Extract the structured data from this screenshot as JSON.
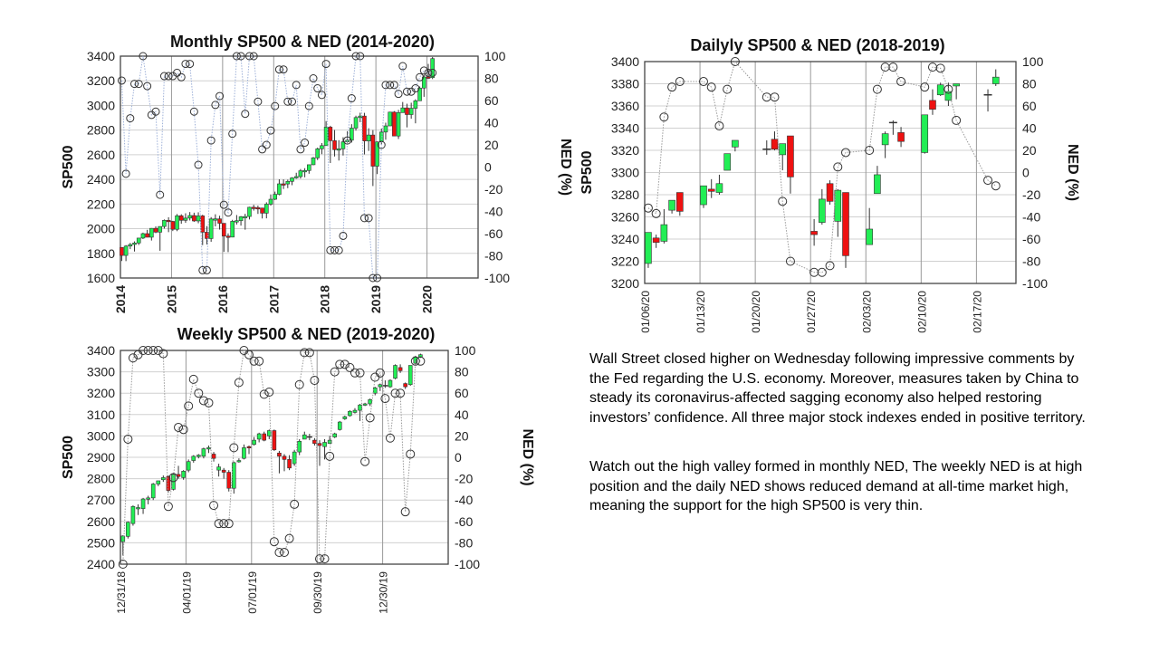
{
  "colors": {
    "up": "#22ee55",
    "down": "#ee1111",
    "outline": "#333333",
    "grid": "#d0d0d0",
    "ned_line_monthly": "#9db0d8",
    "ned_line": "#999999"
  },
  "commentary": {
    "paragraph1": [
      "Wall Street closed higher on Wednesday following impressive comments by",
      "the Fed regarding the U.S. economy. Moreover, measures taken by China to",
      "steady its coronavirus-affected sagging economy also helped restoring",
      "investors’ confidence. All three major stock indexes ended in positive territory."
    ],
    "paragraph2": [
      "Watch out the high valley formed in monthly NED, The weekly NED is at high",
      "position and the daily NED shows reduced demand at all-time market high,",
      "meaning the support for the high SP500 is very thin."
    ]
  },
  "chart_data": [
    {
      "id": "monthly",
      "type": "candlestick",
      "title": "Monthly SP500 & NED (2014-2020)",
      "ylabel": "SP500",
      "y2label": "NED (%)",
      "ylim": [
        1600,
        3400
      ],
      "ystep": 200,
      "y2lim": [
        -100,
        100
      ],
      "y2step": 20,
      "xlim": [
        0,
        84
      ],
      "xticks": [
        {
          "label": "2014",
          "x": 0
        },
        {
          "label": "2015",
          "x": 12
        },
        {
          "label": "2016",
          "x": 24
        },
        {
          "label": "2017",
          "x": 36
        },
        {
          "label": "2018",
          "x": 48
        },
        {
          "label": "2019",
          "x": 60
        },
        {
          "label": "2020",
          "x": 72
        }
      ],
      "candles_ohlc": [
        [
          1848,
          1850,
          1738,
          1783
        ],
        [
          1783,
          1867,
          1737,
          1859
        ],
        [
          1859,
          1884,
          1834,
          1872
        ],
        [
          1872,
          1897,
          1815,
          1884
        ],
        [
          1884,
          1924,
          1868,
          1924
        ],
        [
          1924,
          1968,
          1916,
          1960
        ],
        [
          1960,
          1991,
          1930,
          1931
        ],
        [
          1931,
          2005,
          1904,
          2003
        ],
        [
          2003,
          2019,
          1964,
          1972
        ],
        [
          1972,
          2019,
          1821,
          2018
        ],
        [
          2018,
          2075,
          2001,
          2068
        ],
        [
          2068,
          2093,
          1972,
          2059
        ],
        [
          2059,
          2064,
          1981,
          1995
        ],
        [
          1995,
          2119,
          1980,
          2105
        ],
        [
          2105,
          2117,
          2040,
          2068
        ],
        [
          2068,
          2125,
          2048,
          2086
        ],
        [
          2086,
          2135,
          2067,
          2107
        ],
        [
          2107,
          2130,
          2056,
          2063
        ],
        [
          2063,
          2133,
          2044,
          2104
        ],
        [
          2104,
          2113,
          1867,
          1972
        ],
        [
          1972,
          2021,
          1872,
          1920
        ],
        [
          1920,
          2094,
          1894,
          2079
        ],
        [
          2079,
          2117,
          2019,
          2080
        ],
        [
          2080,
          2105,
          1993,
          2044
        ],
        [
          2044,
          2044,
          1812,
          1940
        ],
        [
          1940,
          1962,
          1810,
          1932
        ],
        [
          1932,
          2072,
          1930,
          2060
        ],
        [
          2060,
          2111,
          2034,
          2065
        ],
        [
          2065,
          2103,
          2025,
          2097
        ],
        [
          2097,
          2121,
          1992,
          2099
        ],
        [
          2099,
          2178,
          2075,
          2174
        ],
        [
          2174,
          2194,
          2147,
          2171
        ],
        [
          2171,
          2188,
          2120,
          2168
        ],
        [
          2168,
          2169,
          2083,
          2126
        ],
        [
          2126,
          2214,
          2084,
          2199
        ],
        [
          2199,
          2278,
          2187,
          2239
        ],
        [
          2239,
          2301,
          2233,
          2279
        ],
        [
          2279,
          2401,
          2271,
          2364
        ],
        [
          2364,
          2400,
          2322,
          2363
        ],
        [
          2363,
          2398,
          2329,
          2384
        ],
        [
          2384,
          2418,
          2353,
          2412
        ],
        [
          2412,
          2454,
          2405,
          2423
        ],
        [
          2423,
          2484,
          2407,
          2470
        ],
        [
          2470,
          2491,
          2417,
          2472
        ],
        [
          2472,
          2520,
          2446,
          2519
        ],
        [
          2519,
          2582,
          2515,
          2575
        ],
        [
          2575,
          2658,
          2557,
          2648
        ],
        [
          2648,
          2695,
          2605,
          2674
        ],
        [
          2674,
          2873,
          2673,
          2824
        ],
        [
          2824,
          2835,
          2533,
          2714
        ],
        [
          2714,
          2801,
          2586,
          2641
        ],
        [
          2641,
          2718,
          2553,
          2648
        ],
        [
          2648,
          2742,
          2594,
          2705
        ],
        [
          2705,
          2791,
          2698,
          2718
        ],
        [
          2718,
          2848,
          2699,
          2816
        ],
        [
          2816,
          2917,
          2796,
          2902
        ],
        [
          2902,
          2941,
          2864,
          2914
        ],
        [
          2914,
          2940,
          2603,
          2712
        ],
        [
          2712,
          2815,
          2631,
          2760
        ],
        [
          2760,
          2800,
          2346,
          2507
        ],
        [
          2507,
          2708,
          2443,
          2704
        ],
        [
          2704,
          2813,
          2681,
          2784
        ],
        [
          2784,
          2860,
          2722,
          2834
        ],
        [
          2834,
          2949,
          2834,
          2946
        ],
        [
          2946,
          2954,
          2750,
          2752
        ],
        [
          2752,
          2964,
          2728,
          2942
        ],
        [
          2942,
          3028,
          2942,
          2980
        ],
        [
          2980,
          3014,
          2822,
          2926
        ],
        [
          2926,
          3022,
          2892,
          2977
        ],
        [
          2977,
          3050,
          2855,
          3038
        ],
        [
          3038,
          3154,
          3038,
          3141
        ],
        [
          3141,
          3247,
          3070,
          3231
        ],
        [
          3231,
          3337,
          3214,
          3226
        ],
        [
          3226,
          3393,
          3214,
          3380
        ]
      ],
      "ned": [
        78,
        -6,
        44,
        75,
        75,
        100,
        73,
        47,
        50,
        -25,
        82,
        82,
        82,
        85,
        81,
        93,
        93,
        50,
        2,
        -93,
        -93,
        24,
        56,
        64,
        -34,
        -41,
        30,
        100,
        100,
        48,
        100,
        100,
        59,
        16,
        20,
        33,
        55,
        88,
        88,
        59,
        59,
        74,
        16,
        22,
        55,
        80,
        71,
        65,
        93,
        -75,
        -75,
        -75,
        -62,
        24,
        62,
        100,
        100,
        -46,
        -46,
        -100,
        -100,
        20,
        74,
        74,
        74,
        66,
        91,
        68,
        68,
        71,
        81,
        87,
        85,
        85
      ]
    },
    {
      "id": "daily",
      "type": "candlestick",
      "title": "Dailyly SP500 & NED (2018-2019)",
      "ylabel": "SP500",
      "y2label": "NED (%)",
      "ylim": [
        3200,
        3400
      ],
      "ystep": 20,
      "y2lim": [
        -100,
        100
      ],
      "y2step": 20,
      "xlim": [
        0,
        47
      ],
      "xticks": [
        {
          "label": "01/06/20",
          "x": 0
        },
        {
          "label": "01/13/20",
          "x": 7
        },
        {
          "label": "01/20/20",
          "x": 14
        },
        {
          "label": "01/27/20",
          "x": 21
        },
        {
          "label": "02/03/20",
          "x": 28
        },
        {
          "label": "02/10/20",
          "x": 35
        },
        {
          "label": "02/17/20",
          "x": 42
        }
      ],
      "x": [
        0,
        1,
        2,
        3,
        4,
        7,
        8,
        9,
        10,
        11,
        15,
        16,
        17,
        18,
        21,
        22,
        23,
        24,
        25,
        28,
        29,
        30,
        31,
        32,
        35,
        36,
        37,
        38,
        39,
        43,
        44
      ],
      "candles_ohlc": [
        [
          3218,
          3246,
          3214,
          3246
        ],
        [
          3241,
          3244,
          3232,
          3237
        ],
        [
          3238,
          3267,
          3236,
          3253
        ],
        [
          3266,
          3275,
          3263,
          3275
        ],
        [
          3282,
          3282,
          3261,
          3265
        ],
        [
          3271,
          3288,
          3268,
          3288
        ],
        [
          3285,
          3294,
          3277,
          3283
        ],
        [
          3282,
          3298,
          3280,
          3290
        ],
        [
          3302,
          3317,
          3302,
          3317
        ],
        [
          3323,
          3329,
          3319,
          3329
        ],
        [
          3321,
          3329,
          3316,
          3321
        ],
        [
          3330,
          3337,
          3320,
          3321
        ],
        [
          3316,
          3326,
          3302,
          3326
        ],
        [
          3333,
          3333,
          3281,
          3296
        ],
        [
          3247,
          3258,
          3234,
          3244
        ],
        [
          3255,
          3285,
          3253,
          3276
        ],
        [
          3290,
          3293,
          3271,
          3274
        ],
        [
          3256,
          3285,
          3242,
          3284
        ],
        [
          3282,
          3282,
          3214,
          3225
        ],
        [
          3235,
          3268,
          3235,
          3249
        ],
        [
          3281,
          3306,
          3281,
          3298
        ],
        [
          3325,
          3337,
          3313,
          3335
        ],
        [
          3345,
          3347,
          3334,
          3345
        ],
        [
          3336,
          3341,
          3323,
          3328
        ],
        [
          3318,
          3352,
          3317,
          3352
        ],
        [
          3365,
          3375,
          3352,
          3357
        ],
        [
          3370,
          3381,
          3369,
          3379
        ],
        [
          3365,
          3381,
          3360,
          3373
        ],
        [
          3378,
          3380,
          3366,
          3380
        ],
        [
          3370,
          3375,
          3355,
          3370
        ],
        [
          3380,
          3393,
          3378,
          3386
        ]
      ],
      "ned": [
        -32,
        -37,
        50,
        77,
        82,
        82,
        77,
        42,
        75,
        100,
        68,
        68,
        -26,
        -80,
        -90,
        -90,
        -84,
        5,
        18,
        20,
        75,
        95,
        95,
        82,
        77,
        95,
        94,
        75,
        47,
        -7,
        -12
      ]
    },
    {
      "id": "weekly",
      "type": "candlestick",
      "title": "Weekly SP500 & NED (2019-2020)",
      "ylabel": "SP500",
      "y2label": "NED (%)",
      "ylim": [
        2400,
        3400
      ],
      "ystep": 100,
      "y2lim": [
        -100,
        100
      ],
      "y2step": 20,
      "xlim": [
        0,
        65
      ],
      "xticks": [
        {
          "label": "12/31/18",
          "x": 0
        },
        {
          "label": "04/01/19",
          "x": 13
        },
        {
          "label": "07/01/19",
          "x": 26
        },
        {
          "label": "09/30/19",
          "x": 39
        },
        {
          "label": "12/30/19",
          "x": 52
        }
      ],
      "candles_ohlc": [
        [
          2505,
          2535,
          2440,
          2532
        ],
        [
          2530,
          2600,
          2520,
          2596
        ],
        [
          2590,
          2675,
          2580,
          2670
        ],
        [
          2660,
          2680,
          2630,
          2665
        ],
        [
          2660,
          2710,
          2635,
          2705
        ],
        [
          2705,
          2720,
          2680,
          2710
        ],
        [
          2710,
          2780,
          2700,
          2775
        ],
        [
          2775,
          2790,
          2765,
          2790
        ],
        [
          2795,
          2815,
          2785,
          2805
        ],
        [
          2810,
          2815,
          2735,
          2745
        ],
        [
          2750,
          2825,
          2745,
          2820
        ],
        [
          2820,
          2860,
          2800,
          2810
        ],
        [
          2805,
          2840,
          2795,
          2835
        ],
        [
          2840,
          2890,
          2830,
          2880
        ],
        [
          2885,
          2910,
          2875,
          2905
        ],
        [
          2905,
          2915,
          2895,
          2910
        ],
        [
          2905,
          2945,
          2895,
          2940
        ],
        [
          2940,
          2955,
          2920,
          2945
        ],
        [
          2915,
          2925,
          2880,
          2895
        ],
        [
          2840,
          2870,
          2810,
          2855
        ],
        [
          2840,
          2850,
          2800,
          2830
        ],
        [
          2830,
          2840,
          2740,
          2755
        ],
        [
          2755,
          2880,
          2730,
          2875
        ],
        [
          2880,
          2895,
          2875,
          2885
        ],
        [
          2895,
          2960,
          2890,
          2945
        ],
        [
          2950,
          2955,
          2915,
          2945
        ],
        [
          2960,
          2995,
          2955,
          2980
        ],
        [
          2985,
          3015,
          2970,
          3010
        ],
        [
          3010,
          3020,
          2975,
          2980
        ],
        [
          3000,
          3030,
          2985,
          3025
        ],
        [
          3025,
          3030,
          2930,
          2935
        ],
        [
          2920,
          2930,
          2825,
          2905
        ],
        [
          2905,
          2915,
          2835,
          2890
        ],
        [
          2890,
          2910,
          2840,
          2850
        ],
        [
          2870,
          2935,
          2860,
          2925
        ],
        [
          2925,
          2985,
          2910,
          2975
        ],
        [
          2985,
          3020,
          2985,
          3005
        ],
        [
          2995,
          3010,
          2980,
          2995
        ],
        [
          2980,
          2990,
          2955,
          2965
        ],
        [
          2965,
          2980,
          2860,
          2955
        ],
        [
          2950,
          2985,
          2890,
          2970
        ],
        [
          2965,
          3000,
          2965,
          2980
        ],
        [
          2995,
          3015,
          2990,
          3010
        ],
        [
          3030,
          3070,
          3025,
          3065
        ],
        [
          3080,
          3095,
          3075,
          3090
        ],
        [
          3095,
          3120,
          3090,
          3115
        ],
        [
          3110,
          3130,
          3105,
          3120
        ],
        [
          3120,
          3150,
          3070,
          3145
        ],
        [
          3145,
          3155,
          3140,
          3150
        ],
        [
          3150,
          3175,
          3140,
          3170
        ],
        [
          3200,
          3230,
          3190,
          3225
        ],
        [
          3230,
          3245,
          3210,
          3240
        ],
        [
          3235,
          3260,
          3225,
          3235
        ],
        [
          3230,
          3265,
          3225,
          3260
        ],
        [
          3270,
          3335,
          3265,
          3330
        ],
        [
          3320,
          3335,
          3295,
          3305
        ],
        [
          3245,
          3250,
          3220,
          3230
        ],
        [
          3240,
          3330,
          3235,
          3330
        ],
        [
          3340,
          3375,
          3335,
          3370
        ],
        [
          3370,
          3385,
          3365,
          3380
        ]
      ],
      "ned": [
        -100,
        17,
        93,
        96,
        100,
        100,
        100,
        100,
        97,
        -46,
        -19,
        28,
        26,
        48,
        73,
        60,
        53,
        51,
        -45,
        -62,
        -62,
        -62,
        9,
        70,
        100,
        96,
        90,
        90,
        59,
        61,
        -79,
        -89,
        -89,
        -76,
        -44,
        68,
        98,
        98,
        72,
        -95,
        -95,
        1,
        80,
        87,
        87,
        84,
        79,
        79,
        -4,
        37,
        75,
        79,
        55,
        18,
        60,
        60,
        -51,
        3,
        90,
        90
      ]
    }
  ]
}
